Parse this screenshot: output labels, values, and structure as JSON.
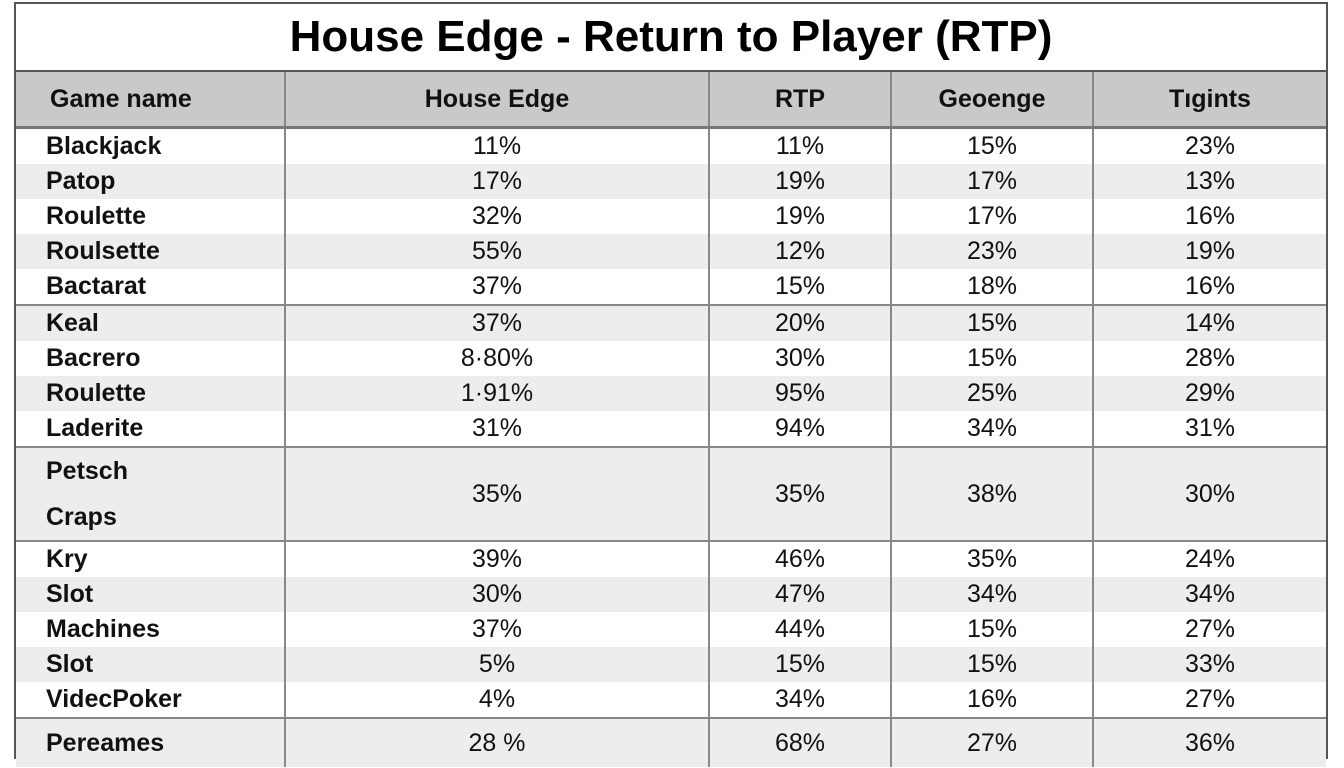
{
  "title": "House Edge - Return to Player (RTP)",
  "table": {
    "headers": [
      "Game name",
      "House Edge",
      "RTP",
      "Geoenge",
      "Tıgints"
    ],
    "rows": [
      [
        "Blackjack",
        "11%",
        "11%",
        "15%",
        "23%"
      ],
      [
        "Patop",
        "17%",
        "19%",
        "17%",
        "13%"
      ],
      [
        "Roulette",
        "32%",
        "19%",
        "17%",
        "16%"
      ],
      [
        "Roulsette",
        "55%",
        "12%",
        "23%",
        "19%"
      ],
      [
        "Bactarat",
        "37%",
        "15%",
        "18%",
        "16%"
      ],
      [
        "Keal",
        "37%",
        "20%",
        "15%",
        "14%"
      ],
      [
        "Bacrero",
        "8·80%",
        "30%",
        "15%",
        "28%"
      ],
      [
        "Roulette",
        "1·91%",
        "95%",
        "25%",
        "29%"
      ],
      [
        "Laderite",
        "31%",
        "94%",
        "34%",
        "31%"
      ],
      [
        "Petsch\nCraps",
        "35%",
        "35%",
        "38%",
        "30%"
      ],
      [
        "Kry",
        "39%",
        "46%",
        "35%",
        "24%"
      ],
      [
        "Slot",
        "30%",
        "47%",
        "34%",
        "34%"
      ],
      [
        "Machines",
        "37%",
        "44%",
        "15%",
        "27%"
      ],
      [
        "Slot",
        "5%",
        "15%",
        "15%",
        "33%"
      ],
      [
        "VidecPoker",
        "4%",
        "34%",
        "16%",
        "27%"
      ],
      [
        "Pereames",
        "28 %",
        "68%",
        "27%",
        "36%"
      ]
    ]
  }
}
